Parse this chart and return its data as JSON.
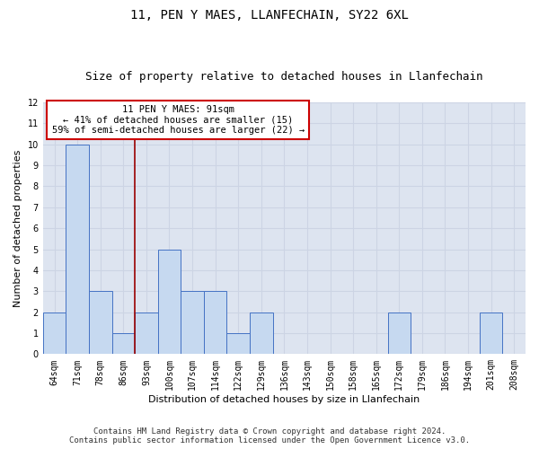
{
  "title": "11, PEN Y MAES, LLANFECHAIN, SY22 6XL",
  "subtitle": "Size of property relative to detached houses in Llanfechain",
  "xlabel": "Distribution of detached houses by size in Llanfechain",
  "ylabel": "Number of detached properties",
  "categories": [
    "64sqm",
    "71sqm",
    "78sqm",
    "86sqm",
    "93sqm",
    "100sqm",
    "107sqm",
    "114sqm",
    "122sqm",
    "129sqm",
    "136sqm",
    "143sqm",
    "150sqm",
    "158sqm",
    "165sqm",
    "172sqm",
    "179sqm",
    "186sqm",
    "194sqm",
    "201sqm",
    "208sqm"
  ],
  "values": [
    2,
    10,
    3,
    1,
    2,
    5,
    3,
    3,
    1,
    2,
    0,
    0,
    0,
    0,
    0,
    2,
    0,
    0,
    0,
    2,
    0
  ],
  "bar_color": "#c6d9f0",
  "bar_edge_color": "#4472c4",
  "subject_vline_x": 3.5,
  "annotation_line1": "11 PEN Y MAES: 91sqm",
  "annotation_line2": "← 41% of detached houses are smaller (15)",
  "annotation_line3": "59% of semi-detached houses are larger (22) →",
  "annotation_box_color": "#ffffff",
  "annotation_box_edge": "#cc0000",
  "subject_vline_color": "#990000",
  "ylim": [
    0,
    12
  ],
  "yticks": [
    0,
    1,
    2,
    3,
    4,
    5,
    6,
    7,
    8,
    9,
    10,
    11,
    12
  ],
  "grid_color": "#ccd4e4",
  "background_color": "#dde4f0",
  "footer_line1": "Contains HM Land Registry data © Crown copyright and database right 2024.",
  "footer_line2": "Contains public sector information licensed under the Open Government Licence v3.0.",
  "title_fontsize": 10,
  "subtitle_fontsize": 9,
  "axis_label_fontsize": 8,
  "tick_fontsize": 7,
  "annotation_fontsize": 7.5,
  "footer_fontsize": 6.5
}
